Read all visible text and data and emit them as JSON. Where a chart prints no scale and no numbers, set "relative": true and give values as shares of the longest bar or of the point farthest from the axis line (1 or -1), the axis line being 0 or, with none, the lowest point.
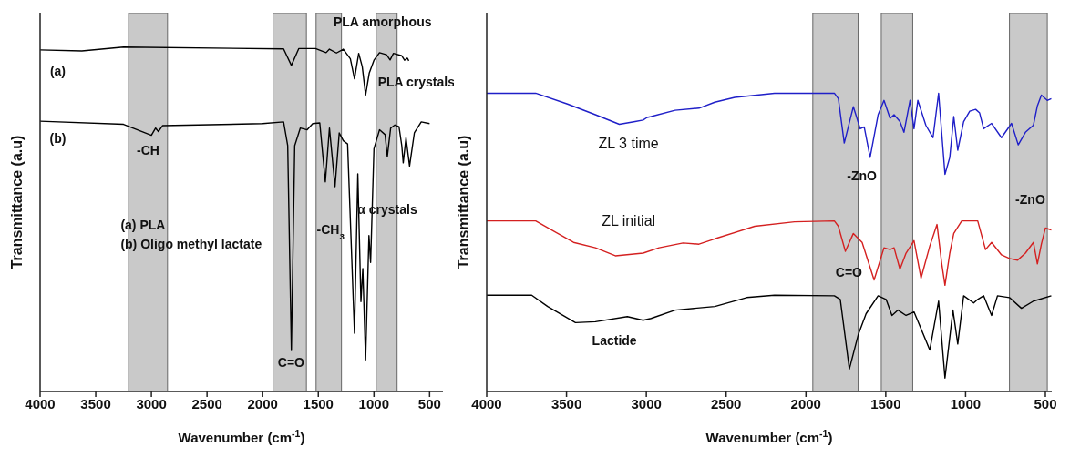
{
  "chart_data": [
    {
      "type": "line",
      "relative": true,
      "xlabel": "Wavenumber (cm$^{-1}$)",
      "ylabel": "Transmittance (a.u)",
      "xlim": [
        4000,
        380
      ],
      "xticks": [
        4000,
        3500,
        3000,
        2500,
        2000,
        1500,
        1000,
        500
      ],
      "series": [
        {
          "name": "(a)",
          "color": "#000000",
          "x": [
            4000,
            3625,
            3250,
            1812,
            1742,
            1675,
            1525,
            1430,
            1400,
            1337,
            1275,
            1212,
            1175,
            1137,
            1105,
            1075,
            1042,
            1000,
            950,
            887,
            855,
            825,
            750,
            725,
            700,
            687
          ],
          "values": [
            0.992,
            0.989,
            1.0,
            0.995,
            0.947,
            0.996,
            0.996,
            0.984,
            0.994,
            0.983,
            0.994,
            0.966,
            0.908,
            0.982,
            0.943,
            0.861,
            0.925,
            0.962,
            0.984,
            0.978,
            0.963,
            0.982,
            0.975,
            0.962,
            0.968,
            0.96
          ]
        },
        {
          "name": "(b)",
          "color": "#000000",
          "x": [
            4000,
            3250,
            3000,
            2962,
            2937,
            2900,
            2000,
            1812,
            1775,
            1742,
            1712,
            1662,
            1600,
            1550,
            1487,
            1437,
            1400,
            1350,
            1312,
            1275,
            1237,
            1175,
            1145,
            1117,
            1100,
            1075,
            1045,
            1030,
            1000,
            950,
            900,
            880,
            850,
            812,
            775,
            750,
            737,
            712,
            680,
            637,
            575,
            500
          ],
          "values": [
            0.785,
            0.776,
            0.744,
            0.765,
            0.755,
            0.772,
            0.778,
            0.783,
            0.714,
            0.119,
            0.714,
            0.765,
            0.76,
            0.778,
            0.78,
            0.609,
            0.765,
            0.595,
            0.751,
            0.728,
            0.719,
            0.169,
            0.632,
            0.261,
            0.357,
            0.092,
            0.453,
            0.375,
            0.705,
            0.76,
            0.746,
            0.682,
            0.765,
            0.774,
            0.769,
            0.714,
            0.664,
            0.737,
            0.655,
            0.751,
            0.783,
            0.778
          ]
        }
      ],
      "bands": [
        {
          "axis": "x",
          "from": 3205,
          "to": 2855,
          "color": "#c0c0c0",
          "label": "-CH"
        },
        {
          "axis": "x",
          "from": 1907,
          "to": 1607,
          "color": "#c0c0c0",
          "label": "C=O"
        },
        {
          "axis": "x",
          "from": 1520,
          "to": 1292,
          "color": "#c0c0c0",
          "label": "-CH$_{3}$"
        },
        {
          "axis": "x",
          "from": 980,
          "to": 792,
          "color": "#c0c0c0",
          "label": "PLA amorphous"
        }
      ],
      "annotations": [
        "PLA crystals",
        "α crystals",
        "(a) PLA",
        "(b) Oligo methyl lactate"
      ]
    },
    {
      "type": "line",
      "relative": true,
      "xlabel": "Wavenumber (cm$^{-1}$)",
      "ylabel": "Transmittance (a.u)",
      "xlim": [
        4000,
        460
      ],
      "xticks": [
        4000,
        3500,
        3000,
        2500,
        2000,
        1500,
        1000,
        500
      ],
      "series": [
        {
          "name": "ZL 3 time",
          "color": "#1f1fc8",
          "x": [
            4000,
            3693,
            3494,
            3319,
            3169,
            3070,
            3020,
            2995,
            2970,
            2820,
            2670,
            2571,
            2446,
            2197,
            1822,
            1797,
            1760,
            1703,
            1660,
            1635,
            1598,
            1548,
            1511,
            1473,
            1448,
            1411,
            1386,
            1348,
            1323,
            1299,
            1249,
            1204,
            1169,
            1129,
            1099,
            1074,
            1049,
            1012,
            974,
            937,
            912,
            887,
            837,
            775,
            712,
            670,
            625,
            575,
            550,
            525,
            488,
            463
          ],
          "values": [
            1.0,
            1.0,
            0.964,
            0.928,
            0.896,
            0.905,
            0.91,
            0.919,
            0.922,
            0.943,
            0.95,
            0.97,
            0.986,
            1.0,
            1.0,
            0.982,
            0.833,
            0.955,
            0.881,
            0.887,
            0.785,
            0.928,
            0.976,
            0.916,
            0.928,
            0.905,
            0.869,
            0.976,
            0.881,
            0.976,
            0.893,
            0.851,
            1.0,
            0.728,
            0.785,
            0.922,
            0.809,
            0.905,
            0.94,
            0.946,
            0.934,
            0.881,
            0.899,
            0.851,
            0.899,
            0.827,
            0.869,
            0.893,
            0.958,
            0.994,
            0.976,
            0.982
          ]
        },
        {
          "name": "ZL initial",
          "color": "#d42020",
          "x": [
            4000,
            3693,
            3456,
            3319,
            3194,
            3020,
            2920,
            2770,
            2670,
            2571,
            2321,
            2072,
            1822,
            1797,
            1753,
            1703,
            1648,
            1573,
            1511,
            1473,
            1448,
            1411,
            1373,
            1323,
            1279,
            1224,
            1179,
            1149,
            1129,
            1099,
            1074,
            1024,
            974,
            924,
            875,
            837,
            775,
            725,
            675,
            625,
            575,
            550,
            525,
            500,
            463
          ],
          "values": [
            0.572,
            0.572,
            0.5,
            0.482,
            0.455,
            0.464,
            0.482,
            0.498,
            0.494,
            0.512,
            0.554,
            0.569,
            0.572,
            0.554,
            0.47,
            0.53,
            0.5,
            0.374,
            0.482,
            0.476,
            0.482,
            0.41,
            0.464,
            0.506,
            0.38,
            0.488,
            0.56,
            0.428,
            0.356,
            0.464,
            0.53,
            0.572,
            0.572,
            0.572,
            0.476,
            0.5,
            0.458,
            0.446,
            0.44,
            0.464,
            0.5,
            0.428,
            0.494,
            0.548,
            0.542
          ]
        },
        {
          "name": "Lactide",
          "color": "#000000",
          "x": [
            4000,
            3718,
            3618,
            3444,
            3319,
            3119,
            3020,
            2970,
            2820,
            2571,
            2371,
            2197,
            1822,
            1785,
            1728,
            1673,
            1623,
            1548,
            1498,
            1461,
            1423,
            1373,
            1323,
            1224,
            1169,
            1129,
            1079,
            1049,
            1012,
            949,
            924,
            887,
            837,
            800,
            725,
            650,
            575,
            463
          ],
          "values": [
            0.323,
            0.323,
            0.285,
            0.231,
            0.234,
            0.251,
            0.239,
            0.245,
            0.273,
            0.285,
            0.315,
            0.323,
            0.321,
            0.309,
            0.075,
            0.189,
            0.261,
            0.321,
            0.309,
            0.255,
            0.273,
            0.255,
            0.267,
            0.139,
            0.303,
            0.045,
            0.273,
            0.159,
            0.321,
            0.297,
            0.309,
            0.321,
            0.255,
            0.321,
            0.315,
            0.279,
            0.303,
            0.321
          ]
        }
      ],
      "bands": [
        {
          "axis": "x",
          "from": 1957,
          "to": 1673,
          "color": "#c0c0c0",
          "label": "C=O"
        },
        {
          "axis": "x",
          "from": 1528,
          "to": 1331,
          "color": "#c0c0c0"
        },
        {
          "axis": "x",
          "from": 725,
          "to": 488,
          "color": "#c0c0c0",
          "label": "-ZnO"
        }
      ],
      "annotations": [
        "-ZnO"
      ]
    }
  ]
}
